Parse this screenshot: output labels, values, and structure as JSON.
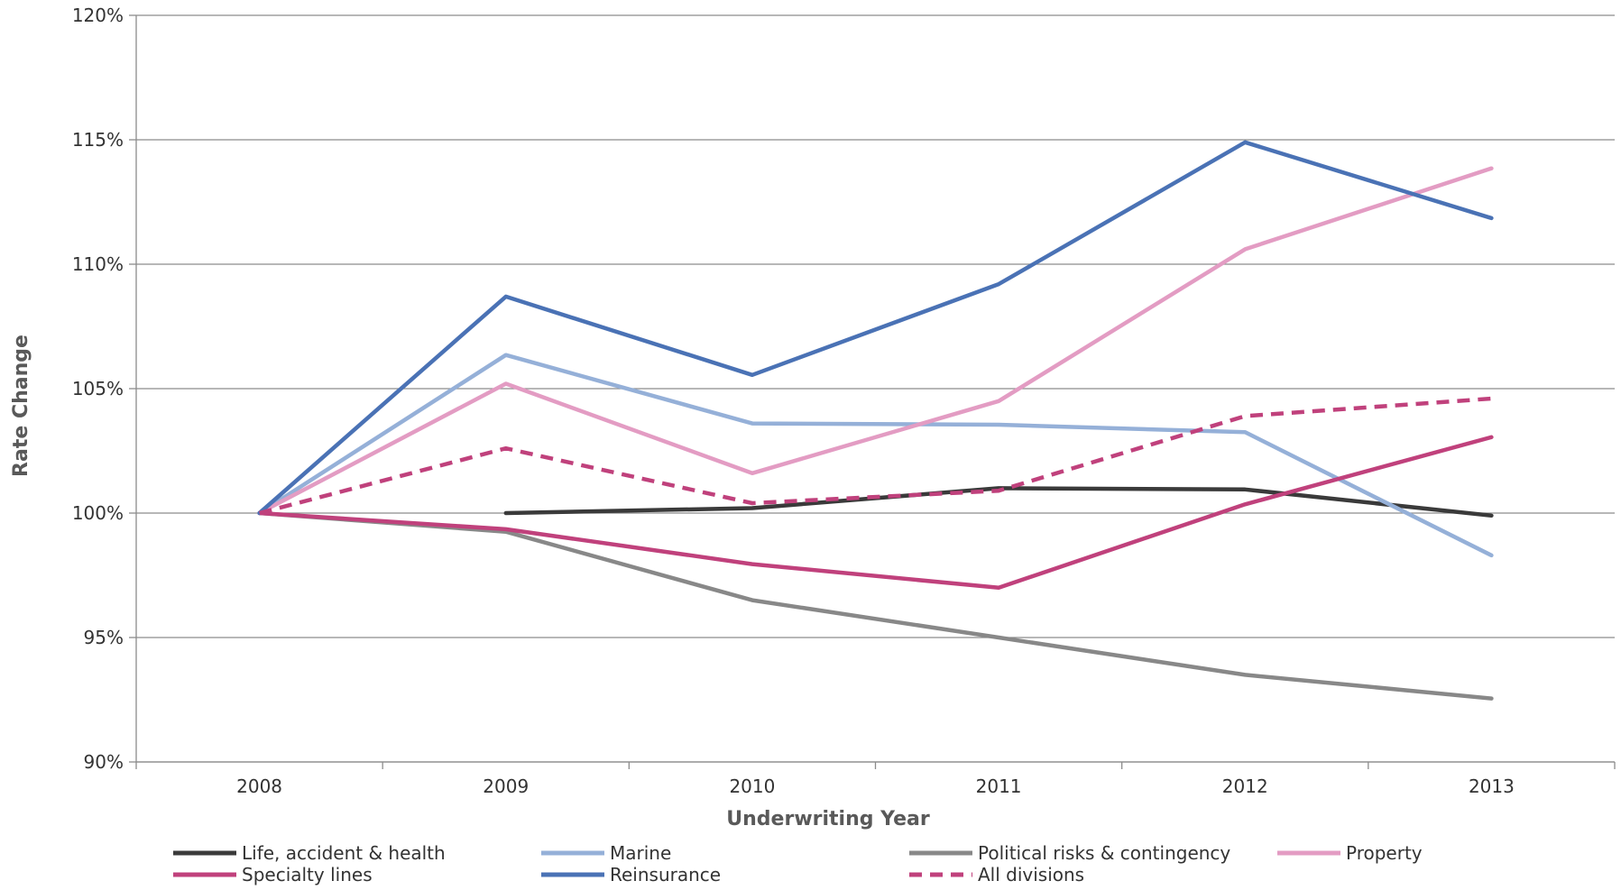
{
  "chart_data": {
    "type": "line",
    "xlabel": "Underwriting Year",
    "ylabel": "Rate Change",
    "categories": [
      "2008",
      "2009",
      "2010",
      "2011",
      "2012",
      "2013"
    ],
    "ylim": [
      90,
      120
    ],
    "yticks": [
      90,
      95,
      100,
      105,
      110,
      115,
      120
    ],
    "ytick_labels": [
      "90%",
      "95%",
      "100%",
      "105%",
      "110%",
      "115%",
      "120%"
    ],
    "grid": true,
    "legend_position": "bottom",
    "series": [
      {
        "name": "Life, accident & health",
        "color": "#3a3a3a",
        "dashed": false,
        "values": [
          null,
          100.0,
          100.2,
          101.0,
          100.95,
          99.9
        ]
      },
      {
        "name": "Marine",
        "color": "#95b0d8",
        "dashed": false,
        "values": [
          100.0,
          106.35,
          103.6,
          103.55,
          103.25,
          98.3
        ]
      },
      {
        "name": "Political risks & contingency",
        "color": "#888888",
        "dashed": false,
        "values": [
          100.0,
          99.25,
          96.5,
          95.0,
          93.5,
          92.55
        ]
      },
      {
        "name": "Property",
        "color": "#e39cc3",
        "dashed": false,
        "values": [
          100.0,
          105.2,
          101.6,
          104.5,
          110.6,
          113.85
        ]
      },
      {
        "name": "Specialty lines",
        "color": "#c0417c",
        "dashed": false,
        "values": [
          100.0,
          99.35,
          97.95,
          97.0,
          100.35,
          103.05
        ]
      },
      {
        "name": "Reinsurance",
        "color": "#4a72b5",
        "dashed": false,
        "values": [
          100.0,
          108.7,
          105.55,
          109.2,
          114.9,
          111.85
        ]
      },
      {
        "name": "All divisions",
        "color": "#c0417c",
        "dashed": true,
        "values": [
          100.0,
          102.6,
          100.4,
          100.9,
          103.9,
          104.6
        ]
      }
    ]
  }
}
